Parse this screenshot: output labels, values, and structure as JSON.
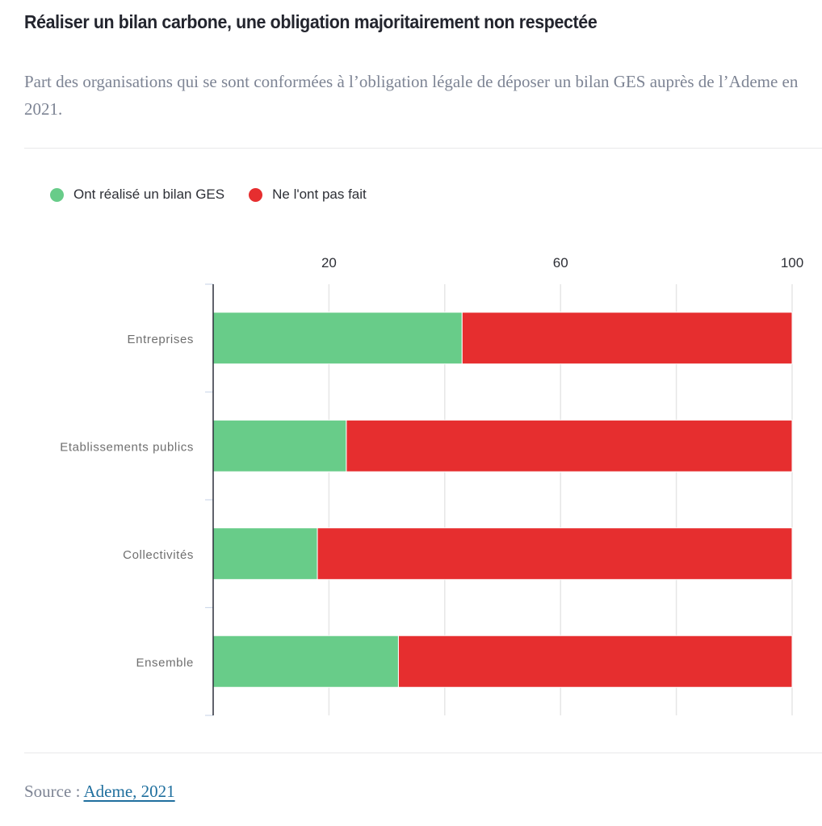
{
  "header": {
    "title": "Réaliser un bilan carbone, une obligation majoritairement non respectée",
    "subtitle": "Part des organisations qui se sont conformées à l’obligation légale de déposer un bilan GES auprès de l’Ademe en 2021."
  },
  "legend": {
    "items": [
      {
        "label": "Ont réalisé un bilan GES",
        "color": "#68cc89"
      },
      {
        "label": "Ne l'ont pas fait",
        "color": "#e62e2f"
      }
    ]
  },
  "footer": {
    "source_prefix": "Source : ",
    "source_link": "Ademe, 2021"
  },
  "chart_data": {
    "type": "bar",
    "orientation": "horizontal",
    "stacked": true,
    "title": "Réaliser un bilan carbone, une obligation majoritairement non respectée",
    "subtitle": "Part des organisations qui se sont conformées à l’obligation légale de déposer un bilan GES auprès de l’Ademe en 2021.",
    "categories": [
      "Entreprises",
      "Etablissements publics",
      "Collectivités",
      "Ensemble"
    ],
    "series": [
      {
        "name": "Ont réalisé un bilan GES",
        "color": "#68cc89",
        "values": [
          43,
          23,
          18,
          32
        ]
      },
      {
        "name": "Ne l'ont pas fait",
        "color": "#e62e2f",
        "values": [
          57,
          77,
          82,
          68
        ]
      }
    ],
    "xlim": [
      0,
      100
    ],
    "xticks": [
      0,
      20,
      40,
      60,
      80,
      100
    ],
    "xtick_labels": [
      "",
      "20",
      "",
      "60",
      "",
      "100"
    ],
    "xaxis_position": "top",
    "grid": true,
    "legend_position": "top-left",
    "xlabel": "",
    "ylabel": ""
  }
}
